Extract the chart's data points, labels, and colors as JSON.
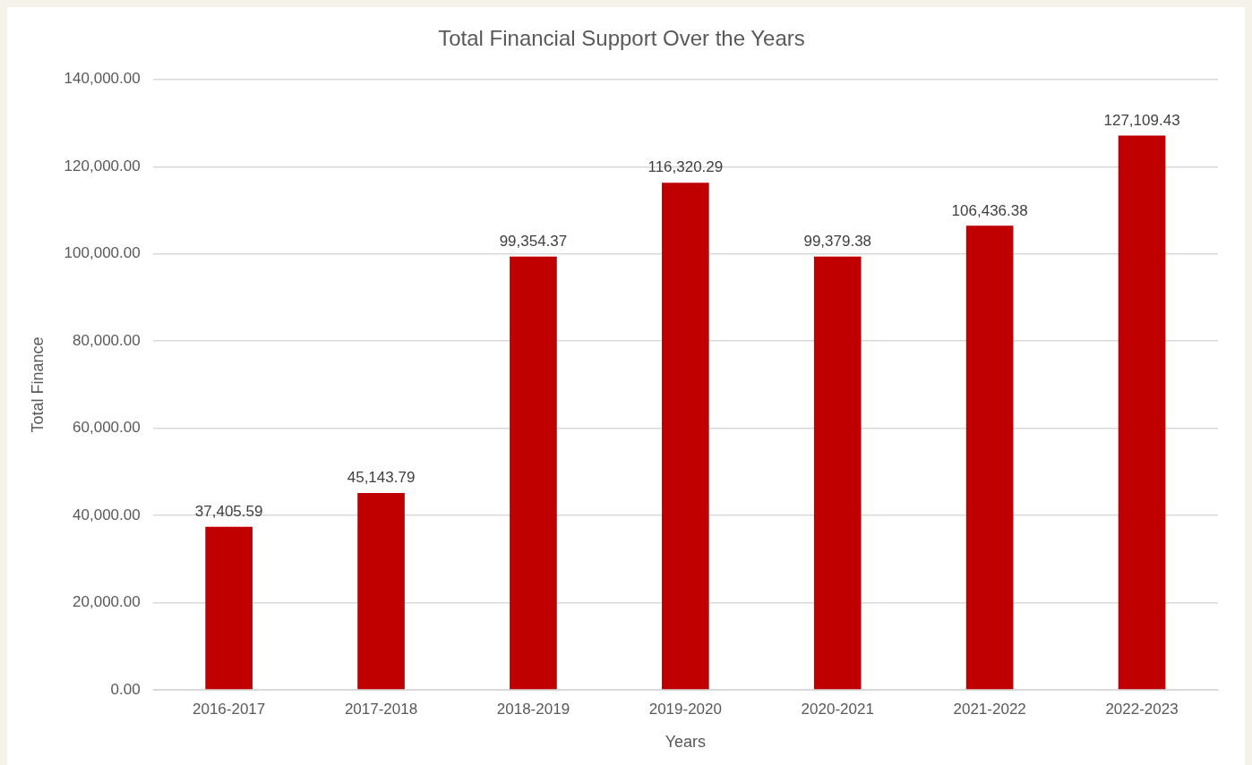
{
  "chart_data": {
    "type": "bar",
    "title": "Total Financial Support Over the Years",
    "xlabel": "Years",
    "ylabel": "Total Finance",
    "categories": [
      "2016-2017",
      "2017-2018",
      "2018-2019",
      "2019-2020",
      "2020-2021",
      "2021-2022",
      "2022-2023"
    ],
    "values": [
      37405.59,
      45143.79,
      99354.37,
      116320.29,
      99379.38,
      106436.38,
      127109.43
    ],
    "value_labels": [
      "37,405.59",
      "45,143.79",
      "99,354.37",
      "116,320.29",
      "99,379.38",
      "106,436.38",
      "127,109.43"
    ],
    "color": "#c00000",
    "ylim": [
      0,
      140000
    ],
    "yticks": [
      {
        "value": 0,
        "label": "0.00"
      },
      {
        "value": 20000,
        "label": "20,000.00"
      },
      {
        "value": 40000,
        "label": "40,000.00"
      },
      {
        "value": 60000,
        "label": "60,000.00"
      },
      {
        "value": 80000,
        "label": "80,000.00"
      },
      {
        "value": 100000,
        "label": "100,000.00"
      },
      {
        "value": 120000,
        "label": "120,000.00"
      },
      {
        "value": 140000,
        "label": "140,000.00"
      }
    ],
    "grid": "y"
  }
}
